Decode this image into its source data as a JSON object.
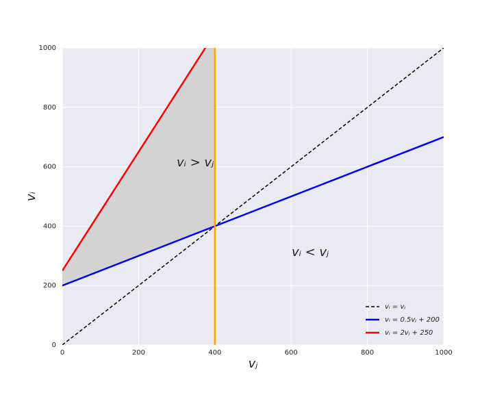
{
  "chart_data": {
    "type": "line",
    "xlabel": "vⱼ",
    "ylabel": "vᵢ",
    "xlim": [
      0,
      1000
    ],
    "ylim": [
      0,
      1000
    ],
    "xticks": [
      0,
      200,
      400,
      600,
      800,
      1000
    ],
    "yticks": [
      0,
      200,
      400,
      600,
      800,
      1000
    ],
    "grid": true,
    "legend": "lower right",
    "series": [
      {
        "name": "vᵢ = vⱼ",
        "color": "#000000",
        "dashed": true,
        "x": [
          0,
          1000
        ],
        "values": [
          0,
          1000
        ]
      },
      {
        "name": "vᵢ = 0.5vⱼ + 200",
        "color": "#0000ff",
        "x": [
          0,
          1000
        ],
        "values": [
          200,
          700
        ]
      },
      {
        "name": "vᵢ = 2vⱼ + 250",
        "color": "#ff0000",
        "x": [
          0,
          375
        ],
        "values": [
          250,
          1000
        ]
      },
      {
        "color": "#ffa500",
        "x": [
          400,
          400
        ],
        "values": [
          0,
          1000
        ]
      }
    ],
    "fill": {
      "color": "#d3d3d3",
      "x": [
        0,
        375,
        400
      ],
      "lower": [
        200,
        387.5,
        400
      ],
      "upper": [
        250,
        1000,
        1000
      ]
    },
    "annotations": [
      "vᵢ > vⱼ",
      "vᵢ < vⱼ"
    ]
  }
}
